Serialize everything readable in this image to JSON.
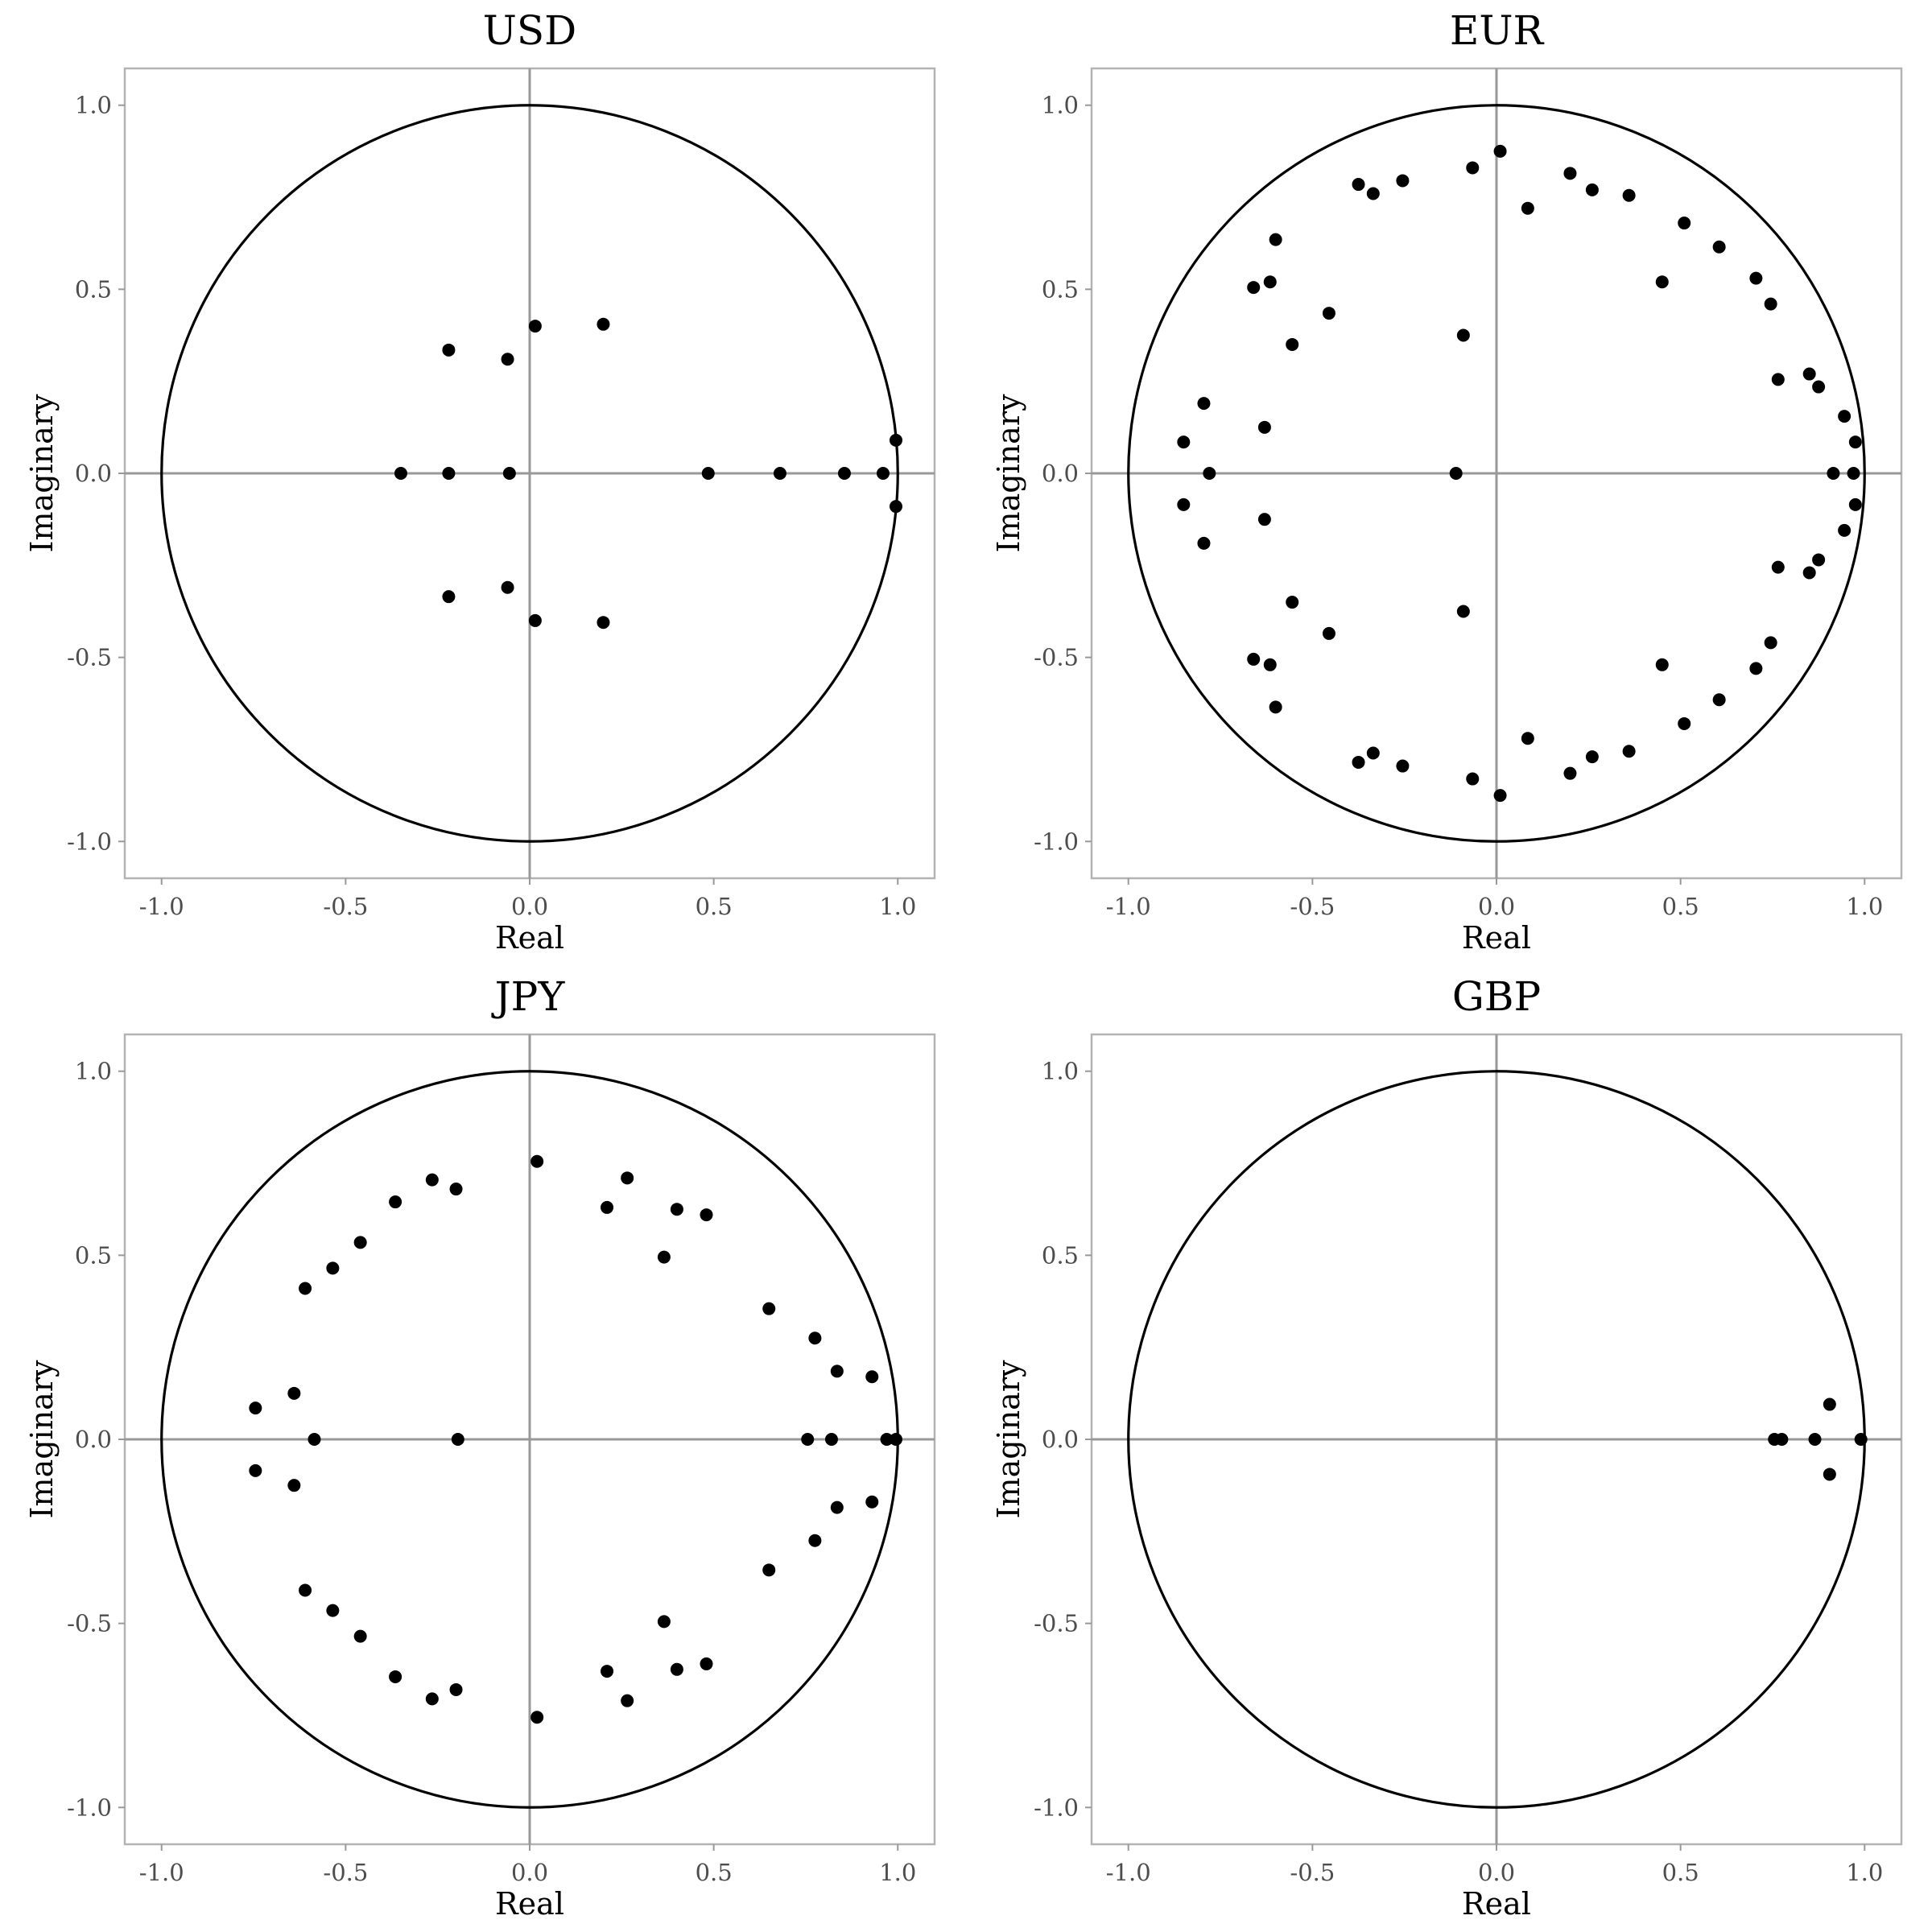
{
  "chart_data": [
    {
      "type": "scatter",
      "title": "USD",
      "xlabel": "Real",
      "ylabel": "Imaginary",
      "xlim": [
        -1.1,
        1.1
      ],
      "ylim": [
        -1.1,
        1.1
      ],
      "xticks": [
        "-1.0",
        "-0.5",
        "0.0",
        "0.5",
        "1.0"
      ],
      "yticks": [
        "-1.0",
        "-0.5",
        "0.0",
        "0.5",
        "1.0"
      ],
      "unit_circle": true,
      "points": [
        [
          0.2,
          0.405
        ],
        [
          0.2,
          -0.405
        ],
        [
          0.015,
          0.4
        ],
        [
          0.015,
          -0.4
        ],
        [
          -0.06,
          0.31
        ],
        [
          -0.06,
          -0.31
        ],
        [
          -0.22,
          0.335
        ],
        [
          -0.22,
          -0.335
        ],
        [
          -0.35,
          0.0
        ],
        [
          -0.22,
          0.0
        ],
        [
          -0.055,
          0.0
        ],
        [
          0.485,
          0.0
        ],
        [
          0.68,
          0.0
        ],
        [
          0.855,
          0.0
        ],
        [
          0.96,
          0.0
        ],
        [
          0.995,
          0.09
        ],
        [
          0.995,
          -0.09
        ]
      ]
    },
    {
      "type": "scatter",
      "title": "EUR",
      "xlabel": "Real",
      "ylabel": "Imaginary",
      "xlim": [
        -1.1,
        1.1
      ],
      "ylim": [
        -1.1,
        1.1
      ],
      "xticks": [
        "-1.0",
        "-0.5",
        "0.0",
        "0.5",
        "1.0"
      ],
      "yticks": [
        "-1.0",
        "-0.5",
        "0.0",
        "0.5",
        "1.0"
      ],
      "unit_circle": true,
      "points": [
        [
          0.01,
          0.875
        ],
        [
          0.01,
          -0.875
        ],
        [
          -0.065,
          0.83
        ],
        [
          -0.065,
          -0.83
        ],
        [
          -0.255,
          0.795
        ],
        [
          -0.255,
          -0.795
        ],
        [
          -0.375,
          0.785
        ],
        [
          -0.375,
          -0.785
        ],
        [
          -0.335,
          0.76
        ],
        [
          -0.335,
          -0.76
        ],
        [
          0.085,
          0.72
        ],
        [
          0.085,
          -0.72
        ],
        [
          0.2,
          0.815
        ],
        [
          0.2,
          -0.815
        ],
        [
          0.26,
          0.77
        ],
        [
          0.26,
          -0.77
        ],
        [
          0.36,
          0.755
        ],
        [
          0.36,
          -0.755
        ],
        [
          0.51,
          0.68
        ],
        [
          0.51,
          -0.68
        ],
        [
          0.605,
          0.615
        ],
        [
          0.605,
          -0.615
        ],
        [
          0.705,
          0.53
        ],
        [
          0.705,
          -0.53
        ],
        [
          0.745,
          0.46
        ],
        [
          0.745,
          -0.46
        ],
        [
          0.45,
          0.52
        ],
        [
          0.45,
          -0.52
        ],
        [
          0.765,
          0.255
        ],
        [
          0.765,
          -0.255
        ],
        [
          0.85,
          0.27
        ],
        [
          0.85,
          -0.27
        ],
        [
          0.875,
          0.235
        ],
        [
          0.875,
          -0.235
        ],
        [
          0.945,
          0.155
        ],
        [
          0.945,
          -0.155
        ],
        [
          0.975,
          0.085
        ],
        [
          0.975,
          -0.085
        ],
        [
          0.915,
          0.0
        ],
        [
          0.97,
          0.0
        ],
        [
          -0.6,
          0.635
        ],
        [
          -0.6,
          -0.635
        ],
        [
          -0.615,
          0.52
        ],
        [
          -0.615,
          -0.52
        ],
        [
          -0.66,
          0.505
        ],
        [
          -0.66,
          -0.505
        ],
        [
          -0.455,
          0.435
        ],
        [
          -0.455,
          -0.435
        ],
        [
          -0.555,
          0.35
        ],
        [
          -0.555,
          -0.35
        ],
        [
          -0.09,
          0.375
        ],
        [
          -0.09,
          -0.375
        ],
        [
          -0.795,
          0.19
        ],
        [
          -0.795,
          -0.19
        ],
        [
          -0.63,
          0.125
        ],
        [
          -0.63,
          -0.125
        ],
        [
          -0.85,
          0.085
        ],
        [
          -0.85,
          -0.085
        ],
        [
          -0.78,
          0.0
        ],
        [
          -0.11,
          0.0
        ]
      ]
    },
    {
      "type": "scatter",
      "title": "JPY",
      "xlabel": "Real",
      "ylabel": "Imaginary",
      "xlim": [
        -1.1,
        1.1
      ],
      "ylim": [
        -1.1,
        1.1
      ],
      "xticks": [
        "-1.0",
        "-0.5",
        "0.0",
        "0.5",
        "1.0"
      ],
      "yticks": [
        "-1.0",
        "-0.5",
        "0.0",
        "0.5",
        "1.0"
      ],
      "unit_circle": true,
      "points": [
        [
          0.02,
          0.755
        ],
        [
          0.02,
          -0.755
        ],
        [
          0.265,
          0.71
        ],
        [
          0.265,
          -0.71
        ],
        [
          0.21,
          0.63
        ],
        [
          0.21,
          -0.63
        ],
        [
          0.4,
          0.625
        ],
        [
          0.4,
          -0.625
        ],
        [
          0.48,
          0.61
        ],
        [
          0.48,
          -0.61
        ],
        [
          0.365,
          0.495
        ],
        [
          0.365,
          -0.495
        ],
        [
          0.65,
          0.355
        ],
        [
          0.65,
          -0.355
        ],
        [
          0.775,
          0.275
        ],
        [
          0.775,
          -0.275
        ],
        [
          0.835,
          0.185
        ],
        [
          0.835,
          -0.185
        ],
        [
          0.93,
          0.17
        ],
        [
          0.93,
          -0.17
        ],
        [
          0.755,
          0.0
        ],
        [
          0.82,
          0.0
        ],
        [
          0.97,
          0.0
        ],
        [
          0.995,
          0.0
        ],
        [
          -0.2,
          0.68
        ],
        [
          -0.2,
          -0.68
        ],
        [
          -0.265,
          0.705
        ],
        [
          -0.265,
          -0.705
        ],
        [
          -0.365,
          0.645
        ],
        [
          -0.365,
          -0.645
        ],
        [
          -0.46,
          0.535
        ],
        [
          -0.46,
          -0.535
        ],
        [
          -0.535,
          0.465
        ],
        [
          -0.535,
          -0.465
        ],
        [
          -0.61,
          0.41
        ],
        [
          -0.61,
          -0.41
        ],
        [
          -0.64,
          0.125
        ],
        [
          -0.64,
          -0.125
        ],
        [
          -0.745,
          0.085
        ],
        [
          -0.745,
          -0.085
        ],
        [
          -0.585,
          0.0
        ],
        [
          -0.195,
          0.0
        ]
      ]
    },
    {
      "type": "scatter",
      "title": "GBP",
      "xlabel": "Real",
      "ylabel": "Imaginary",
      "xlim": [
        -1.1,
        1.1
      ],
      "ylim": [
        -1.1,
        1.1
      ],
      "xticks": [
        "-1.0",
        "-0.5",
        "0.0",
        "0.5",
        "1.0"
      ],
      "yticks": [
        "-1.0",
        "-0.5",
        "0.0",
        "0.5",
        "1.0"
      ],
      "unit_circle": true,
      "points": [
        [
          0.755,
          0.0
        ],
        [
          0.775,
          0.0
        ],
        [
          0.865,
          0.0
        ],
        [
          0.99,
          0.0
        ],
        [
          0.905,
          0.095
        ],
        [
          0.905,
          -0.095
        ]
      ]
    }
  ]
}
